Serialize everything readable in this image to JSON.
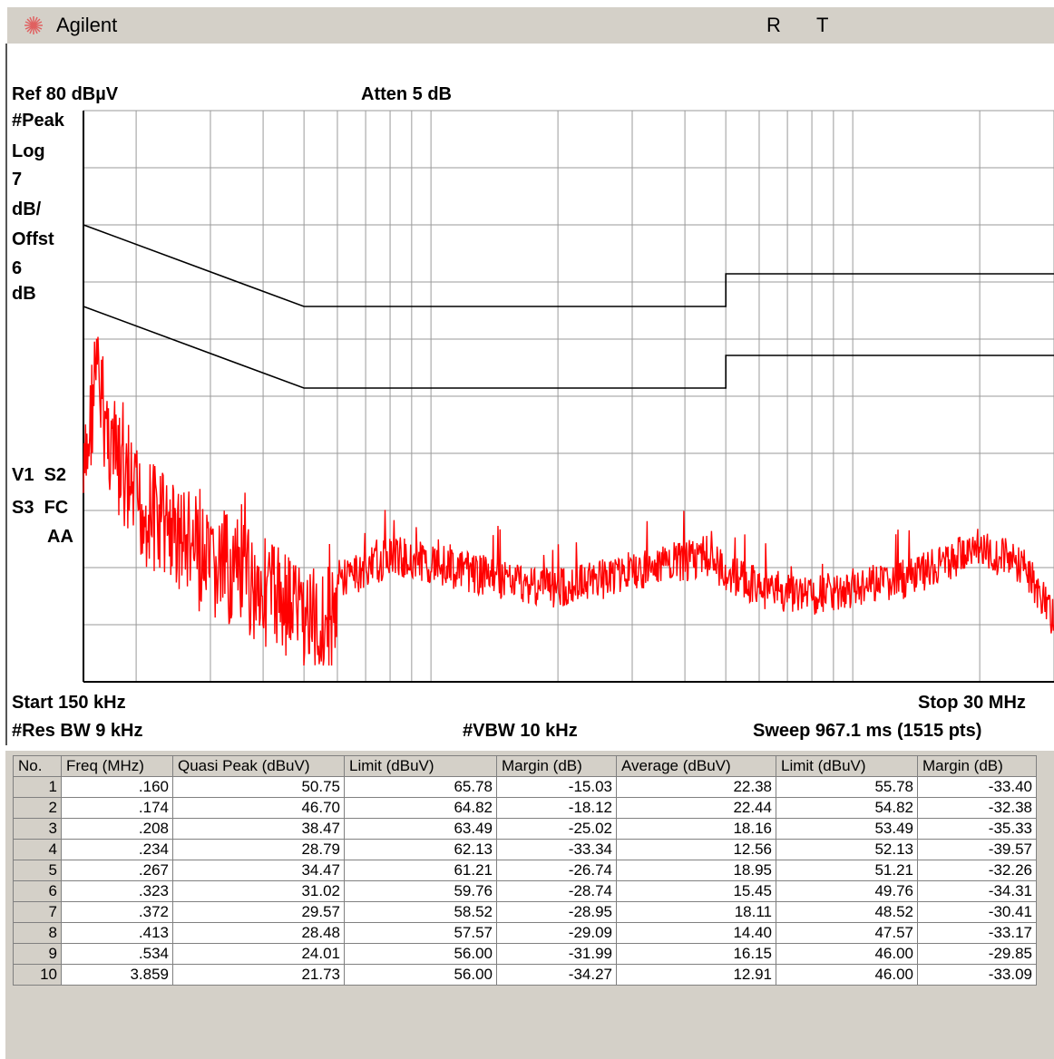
{
  "window": {
    "brand": "Agilent",
    "indicator_r": "R",
    "indicator_t": "T"
  },
  "analyzer": {
    "ref_label": "Ref 80 dBµV",
    "atten_label": "Atten 5 dB",
    "left_panel": [
      "#Peak",
      "Log",
      "7",
      "dB/",
      "Offst",
      "6",
      "dB"
    ],
    "trace_flags_line1": "V1  S2",
    "trace_flags_line2": "S3  FC",
    "trace_flags_line3": "AA",
    "start_label": "Start 150 kHz",
    "stop_label": "Stop 30 MHz",
    "res_bw_label": "#Res BW 9 kHz",
    "vbw_label": "#VBW 10 kHz",
    "sweep_label": "Sweep 967.1 ms (1515 pts)"
  },
  "chart_data": {
    "type": "line",
    "x_scale": "log",
    "xlim_mhz": [
      0.15,
      30
    ],
    "ylim_dbuv": [
      10,
      80
    ],
    "grid": true,
    "series": [
      {
        "x_mhz": [
          0.15,
          0.5,
          5,
          5,
          30
        ],
        "y_dbuv": [
          66,
          56,
          56,
          60,
          60
        ]
      },
      {
        "x_mhz": [
          0.15,
          0.5,
          5,
          5,
          30
        ],
        "y_dbuv": [
          56,
          46,
          46,
          50,
          50
        ]
      },
      {
        "x_mhz": [
          0.15,
          0.16,
          0.174,
          0.19,
          0.208,
          0.234,
          0.267,
          0.3,
          0.323,
          0.372,
          0.413,
          0.45,
          0.534,
          0.6,
          0.7,
          0.8,
          1.0,
          1.2,
          1.5,
          2.0,
          2.5,
          3.0,
          3.859,
          4.5,
          5.0,
          6,
          8,
          10,
          13,
          15,
          18,
          20,
          22,
          25,
          28,
          30
        ],
        "y_dbuv": [
          40,
          55,
          46,
          40,
          38,
          36,
          34,
          30,
          31,
          29,
          28,
          27,
          24,
          25,
          26,
          28,
          27,
          26,
          25,
          24,
          25,
          26,
          27,
          28,
          26,
          24,
          23,
          24,
          25,
          26,
          28,
          29,
          28,
          27,
          23,
          20
        ],
        "color": "#ff0000"
      }
    ]
  },
  "table": {
    "headers": [
      "No.",
      "Freq (MHz)",
      "Quasi Peak  (dBuV)",
      "Limit (dBuV)",
      "Margin (dB)",
      "Average (dBuV)",
      "Limit  (dBuV)",
      "Margin (dB)"
    ],
    "rows": [
      [
        "1",
        ".160",
        "50.75",
        "65.78",
        "-15.03",
        "22.38",
        "55.78",
        "-33.40"
      ],
      [
        "2",
        ".174",
        "46.70",
        "64.82",
        "-18.12",
        "22.44",
        "54.82",
        "-32.38"
      ],
      [
        "3",
        ".208",
        "38.47",
        "63.49",
        "-25.02",
        "18.16",
        "53.49",
        "-35.33"
      ],
      [
        "4",
        ".234",
        "28.79",
        "62.13",
        "-33.34",
        "12.56",
        "52.13",
        "-39.57"
      ],
      [
        "5",
        ".267",
        "34.47",
        "61.21",
        "-26.74",
        "18.95",
        "51.21",
        "-32.26"
      ],
      [
        "6",
        ".323",
        "31.02",
        "59.76",
        "-28.74",
        "15.45",
        "49.76",
        "-34.31"
      ],
      [
        "7",
        ".372",
        "29.57",
        "58.52",
        "-28.95",
        "18.11",
        "48.52",
        "-30.41"
      ],
      [
        "8",
        ".413",
        "28.48",
        "57.57",
        "-29.09",
        "14.40",
        "47.57",
        "-33.17"
      ],
      [
        "9",
        ".534",
        "24.01",
        "56.00",
        "-31.99",
        "16.15",
        "46.00",
        "-29.85"
      ],
      [
        "10",
        "3.859",
        "21.73",
        "56.00",
        "-34.27",
        "12.91",
        "46.00",
        "-33.09"
      ]
    ]
  }
}
